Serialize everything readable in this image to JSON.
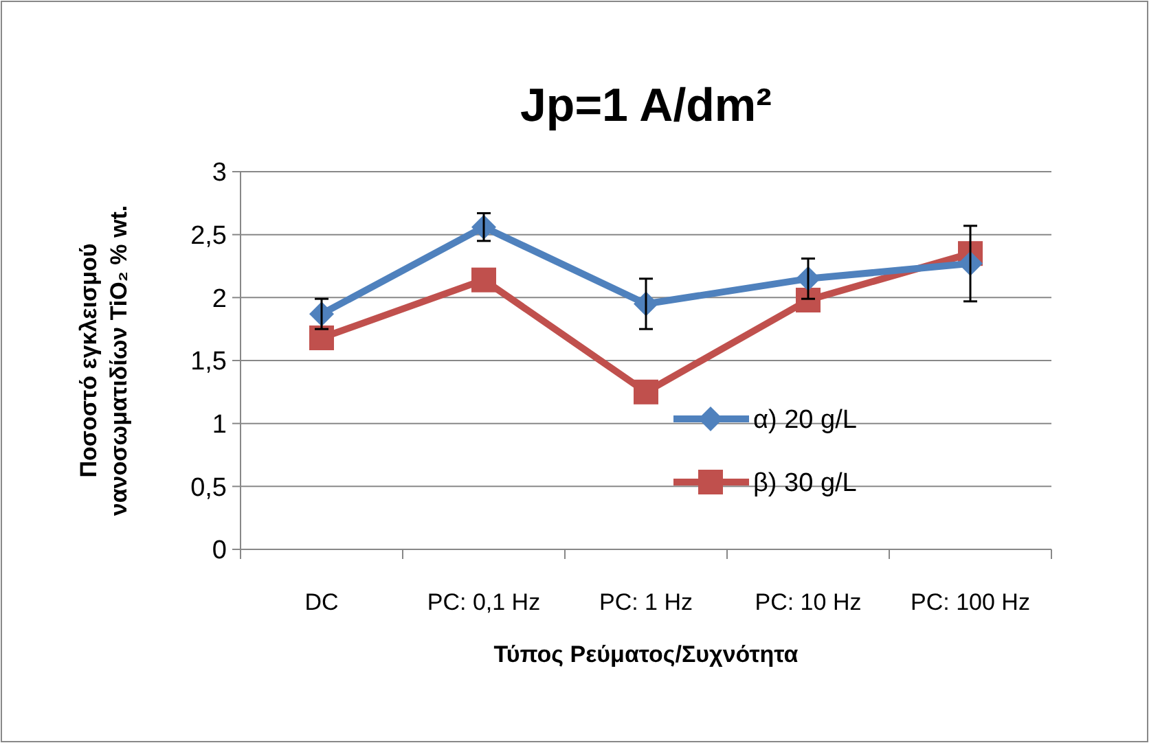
{
  "chart_data": {
    "type": "line",
    "title": "Jp=1 A/dm²",
    "xlabel": "Τύπος Ρεύματος/Συχνότητα",
    "ylabel": "Ποσοστό εγκλεισμού\nνανοσωματιδίων TiO₂ % wt.",
    "categories": [
      "DC",
      "PC: 0,1 Hz",
      "PC: 1 Hz",
      "PC: 10 Hz",
      "PC: 100 Hz"
    ],
    "series": [
      {
        "name": "α) 20 g/L",
        "color": "#4f81bd",
        "marker": "diamond",
        "values": [
          1.87,
          2.56,
          1.95,
          2.15,
          2.27
        ],
        "errors": [
          0.12,
          0.11,
          0.2,
          0.16,
          0.3
        ]
      },
      {
        "name": "β) 30 g/L",
        "color": "#c0504d",
        "marker": "square",
        "values": [
          1.68,
          2.14,
          1.25,
          1.98,
          2.35
        ]
      }
    ],
    "ylim": [
      0,
      3
    ],
    "yticks": [
      0,
      {
        "value": 0.5,
        "label": "0,5"
      },
      1,
      {
        "value": 1.5,
        "label": "1,5"
      },
      2,
      {
        "value": 2.5,
        "label": "2,5"
      },
      3
    ],
    "grid": "y",
    "legend": "bottom right"
  }
}
